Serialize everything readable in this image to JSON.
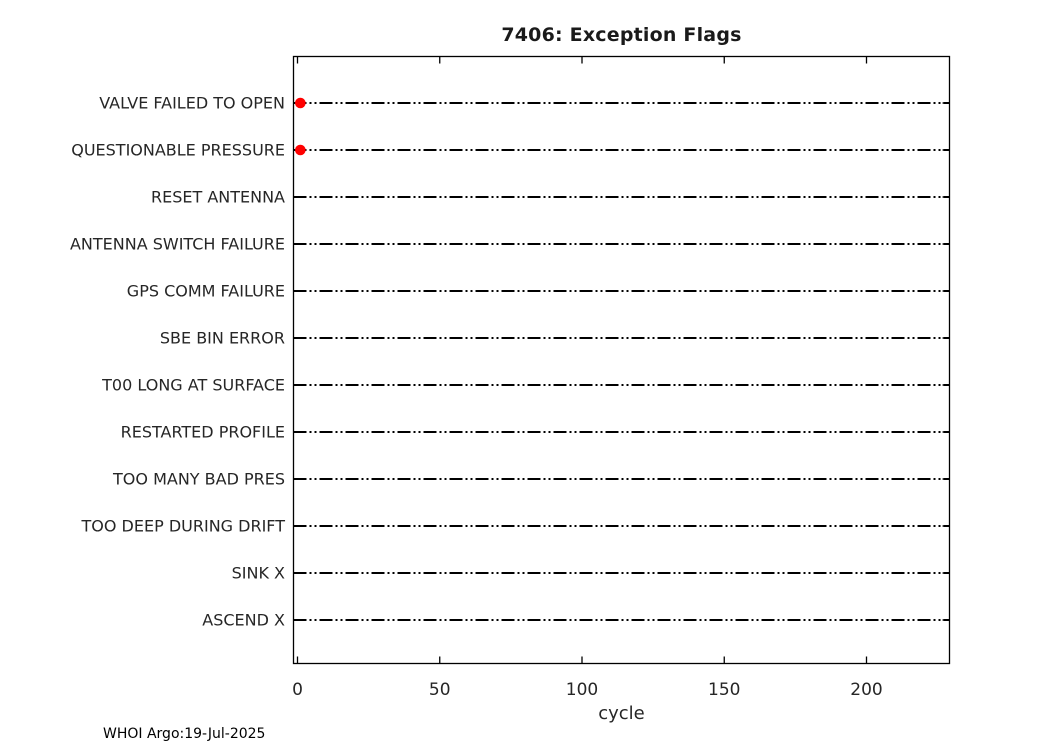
{
  "page": {
    "background_color": "#ffffff"
  },
  "footer": {
    "credit": "WHOI Argo:19-Jul-2025"
  },
  "chart_data": {
    "type": "scatter",
    "title": "7406: Exception Flags",
    "xlabel": "cycle",
    "ylabel": "",
    "categories": [
      "VALVE FAILED TO OPEN",
      "QUESTIONABLE PRESSURE",
      "RESET ANTENNA",
      "ANTENNA SWITCH FAILURE",
      "GPS COMM FAILURE",
      "SBE BIN ERROR",
      "T00 LONG AT SURFACE",
      "RESTARTED PROFILE",
      "TOO MANY BAD PRES",
      "TOO DEEP DURING DRIFT",
      "SINK X",
      "ASCEND X"
    ],
    "xticks": [
      0,
      50,
      100,
      150,
      200
    ],
    "xlim": [
      -2,
      229
    ],
    "points": [
      {
        "category": "VALVE FAILED TO OPEN",
        "x": 1
      },
      {
        "category": "QUESTIONABLE PRESSURE",
        "x": 1
      }
    ],
    "marker": {
      "shape": "circle",
      "color": "#ff0000",
      "size": 10
    },
    "row_line_style": "dash-dot",
    "grid": false,
    "legend": "none",
    "colors": {
      "axis_line": "#000000",
      "row_line": "#000000",
      "text": "#262626",
      "marker": "#ff0000",
      "background": "#ffffff"
    }
  }
}
